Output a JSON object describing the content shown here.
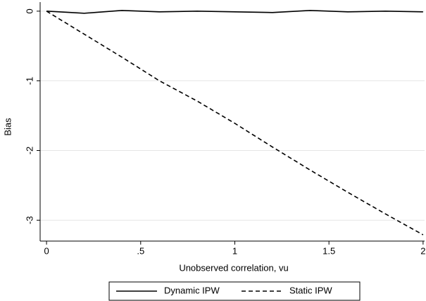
{
  "chart_data": {
    "type": "line",
    "x": [
      0,
      0.2,
      0.4,
      0.6,
      0.8,
      1.0,
      1.2,
      1.4,
      1.6,
      1.8,
      2.0
    ],
    "series": [
      {
        "name": "Dynamic IPW",
        "color": "#000000",
        "line_style": "solid",
        "values": [
          0,
          -0.03,
          0.01,
          -0.01,
          0,
          -0.01,
          -0.02,
          0.01,
          -0.01,
          0,
          -0.01
        ]
      },
      {
        "name": "Static IPW",
        "color": "#000000",
        "line_style": "dashed",
        "values": [
          0,
          -0.33,
          -0.66,
          -1.0,
          -1.29,
          -1.61,
          -1.95,
          -2.28,
          -2.6,
          -2.91,
          -3.21
        ]
      }
    ],
    "xlabel": "Unobserved correlation, vu",
    "ylabel": "Bias",
    "xlim": [
      -0.034,
      2.008
    ],
    "ylim": [
      -3.3,
      0.13
    ],
    "xticks": [
      0,
      {
        "value": 0.5,
        "label": ".5"
      },
      1,
      1.5,
      2
    ],
    "yticks": [
      0,
      -1,
      -2,
      -3
    ],
    "grid": true,
    "legend": "bottom"
  }
}
